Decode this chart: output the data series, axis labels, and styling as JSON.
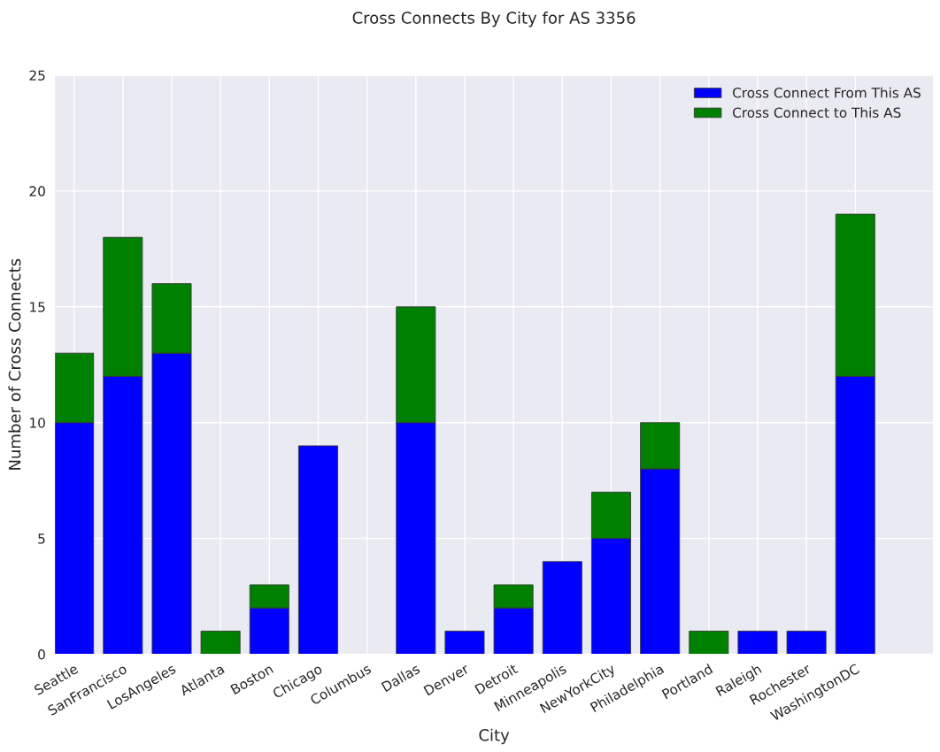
{
  "chart_data": {
    "type": "bar",
    "title": "Cross Connects By City for AS 3356",
    "xlabel": "City",
    "ylabel": "Number of Cross Connects",
    "categories": [
      "Seattle",
      "SanFrancisco",
      "LosAngeles",
      "Atlanta",
      "Boston",
      "Chicago",
      "Columbus",
      "Dallas",
      "Denver",
      "Detroit",
      "Minneapolis",
      "NewYorkCity",
      "Philadelphia",
      "Portland",
      "Raleigh",
      "Rochester",
      "WashingtonDC"
    ],
    "series": [
      {
        "name": "Cross Connect From This AS",
        "color": "#0000ff",
        "values": [
          10,
          12,
          13,
          0,
          2,
          9,
          0,
          10,
          1,
          2,
          4,
          5,
          8,
          0,
          1,
          1,
          12
        ]
      },
      {
        "name": "Cross Connect to This AS",
        "color": "#008000",
        "values": [
          3,
          6,
          3,
          1,
          1,
          0,
          0,
          5,
          0,
          1,
          0,
          2,
          2,
          1,
          0,
          0,
          7
        ]
      }
    ],
    "stacked": true,
    "ylim": [
      0,
      25
    ],
    "yticks": [
      0,
      5,
      10,
      15,
      20,
      25
    ],
    "grid": true,
    "legend": "top right"
  }
}
